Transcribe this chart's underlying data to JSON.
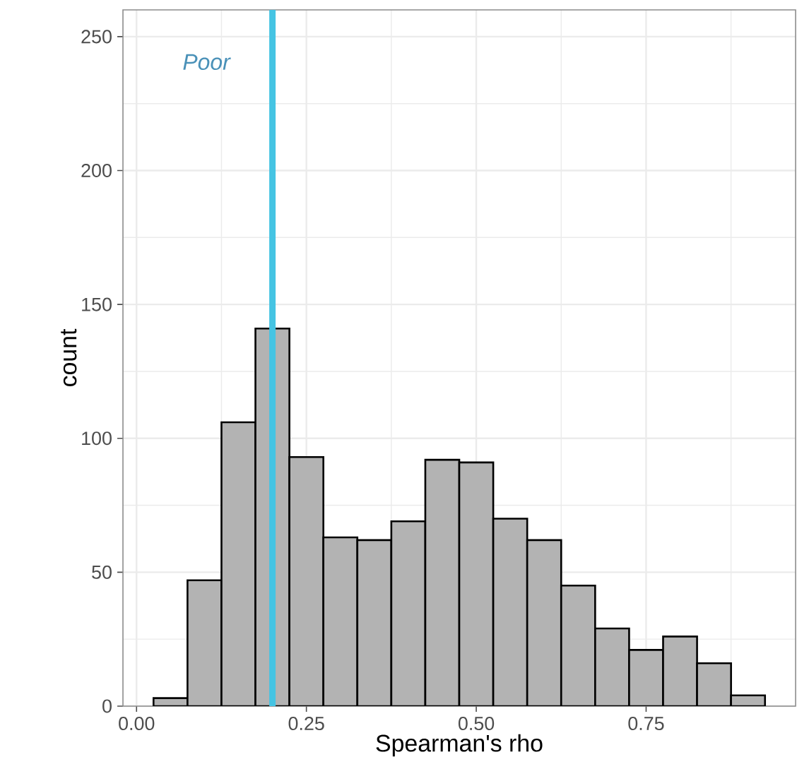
{
  "chart_data": {
    "type": "histogram",
    "xlabel": "Spearman's rho",
    "ylabel": "count",
    "bins": [
      0.025,
      0.075,
      0.125,
      0.175,
      0.225,
      0.275,
      0.325,
      0.375,
      0.425,
      0.475,
      0.525,
      0.575,
      0.625,
      0.675,
      0.725,
      0.775,
      0.825,
      0.875,
      0.925
    ],
    "values": [
      3,
      47,
      106,
      141,
      93,
      63,
      62,
      69,
      92,
      91,
      70,
      62,
      45,
      29,
      21,
      26,
      16,
      4
    ],
    "color": "#b3b3b3",
    "xlim": [
      -0.02,
      0.97
    ],
    "ylim": [
      0,
      260
    ],
    "xticks": [
      {
        "value": 0,
        "label": "0.00"
      },
      {
        "value": 0.25,
        "label": "0.25"
      },
      {
        "value": 0.5,
        "label": "0.50"
      },
      {
        "value": 0.75,
        "label": "0.75"
      }
    ],
    "yticks": [
      0,
      50,
      100,
      150,
      200,
      250
    ],
    "grid": true,
    "ref_lines": [
      {
        "axis": "x",
        "value": 0.2,
        "color": "#45c4e3"
      }
    ],
    "annotations": [
      "Poor"
    ]
  }
}
